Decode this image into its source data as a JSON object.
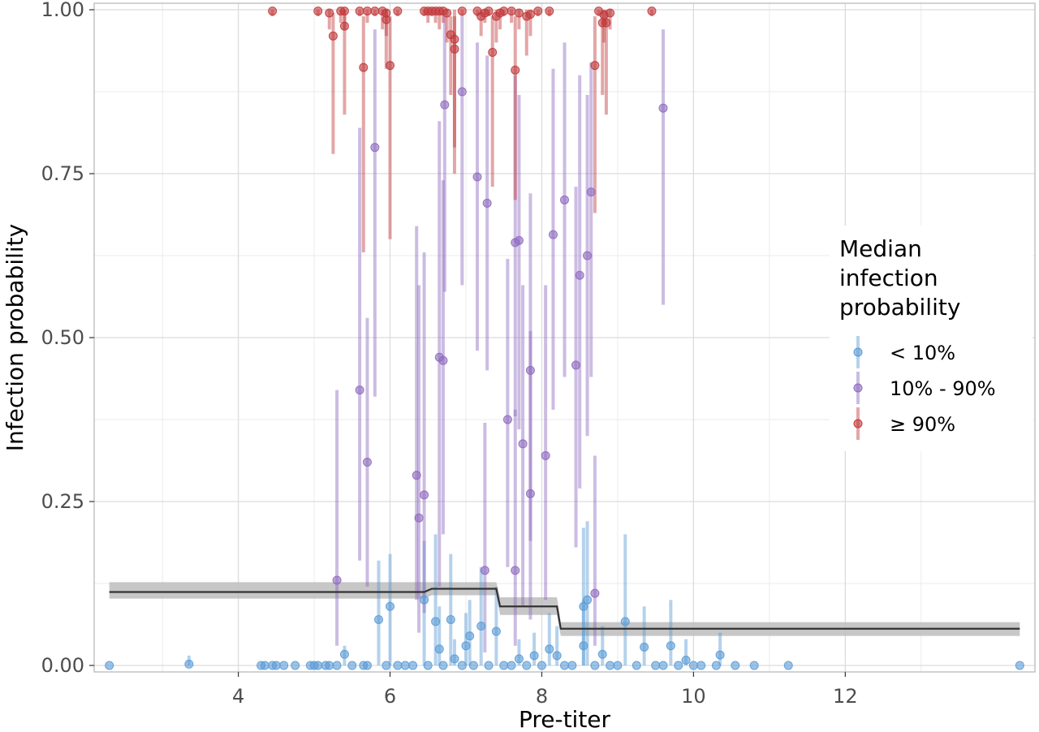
{
  "chart_data": {
    "type": "scatter",
    "xlabel": "Pre-titer",
    "ylabel": "Infection probability",
    "xlim": [
      2.1,
      14.5
    ],
    "ylim": [
      0,
      1
    ],
    "x_ticks": [
      4,
      6,
      8,
      10,
      12
    ],
    "x_tick_labels": [
      "4",
      "6",
      "8",
      "10",
      "12"
    ],
    "y_ticks": [
      0,
      0.25,
      0.5,
      0.75,
      1
    ],
    "y_tick_labels": [
      "0.00",
      "0.25",
      "0.50",
      "0.75",
      "1.00"
    ],
    "grid": true,
    "legend": {
      "title": [
        "Median",
        "infection",
        "probability"
      ],
      "placement": "right",
      "entries": [
        {
          "label": "< 10%",
          "color": "#5B9BD5"
        },
        {
          "label": "10% - 90%",
          "color": "#8E6BBE"
        },
        {
          "label": "≥ 90%",
          "color": "#C0393B"
        }
      ]
    },
    "colors": {
      "low": "#5B9BD5",
      "mid": "#8E6BBE",
      "high": "#C0393B",
      "step": "#333333",
      "band": "#bdbdbd"
    },
    "series": [
      {
        "name": "< 10%",
        "points": [
          [
            2.3,
            0,
            0,
            0
          ],
          [
            3.35,
            0.002,
            0,
            0.015
          ],
          [
            4.3,
            0,
            0,
            0
          ],
          [
            4.35,
            0,
            0,
            0
          ],
          [
            4.45,
            0,
            0,
            0
          ],
          [
            4.5,
            0,
            0,
            0
          ],
          [
            4.6,
            0,
            0,
            0
          ],
          [
            4.75,
            0,
            0,
            0
          ],
          [
            4.95,
            0,
            0,
            0
          ],
          [
            5.0,
            0,
            0,
            0
          ],
          [
            5.05,
            0,
            0,
            0
          ],
          [
            5.15,
            0,
            0,
            0
          ],
          [
            5.2,
            0,
            0,
            0
          ],
          [
            5.3,
            0,
            0,
            0
          ],
          [
            5.4,
            0.017,
            0,
            0.03
          ],
          [
            5.5,
            0,
            0,
            0
          ],
          [
            5.65,
            0,
            0,
            0
          ],
          [
            5.7,
            0,
            0,
            0
          ],
          [
            5.85,
            0.07,
            0,
            0.16
          ],
          [
            5.95,
            0,
            0,
            0
          ],
          [
            6.0,
            0.09,
            0,
            0.17
          ],
          [
            6.1,
            0,
            0,
            0
          ],
          [
            6.2,
            0,
            0,
            0
          ],
          [
            6.3,
            0,
            0,
            0
          ],
          [
            6.45,
            0.1,
            0,
            0.19
          ],
          [
            6.5,
            0,
            0,
            0
          ],
          [
            6.6,
            0.067,
            0,
            0.2
          ],
          [
            6.65,
            0.025,
            0,
            0.09
          ],
          [
            6.7,
            0,
            0,
            0
          ],
          [
            6.8,
            0.07,
            0,
            0.17
          ],
          [
            6.85,
            0.01,
            0,
            0.04
          ],
          [
            6.95,
            0,
            0,
            0
          ],
          [
            7.0,
            0.03,
            0,
            0.08
          ],
          [
            7.05,
            0.045,
            0,
            0.1
          ],
          [
            7.1,
            0,
            0,
            0
          ],
          [
            7.2,
            0.06,
            0,
            0.15
          ],
          [
            7.3,
            0,
            0,
            0
          ],
          [
            7.4,
            0.052,
            0,
            0.12
          ],
          [
            7.5,
            0,
            0,
            0
          ],
          [
            7.6,
            0,
            0,
            0
          ],
          [
            7.7,
            0.01,
            0,
            0.04
          ],
          [
            7.8,
            0,
            0,
            0
          ],
          [
            7.9,
            0.015,
            0,
            0.05
          ],
          [
            8.0,
            0,
            0,
            0
          ],
          [
            8.1,
            0.025,
            0,
            0.08
          ],
          [
            8.2,
            0.015,
            0,
            0.06
          ],
          [
            8.3,
            0,
            0,
            0
          ],
          [
            8.4,
            0,
            0,
            0
          ],
          [
            8.55,
            0.09,
            0,
            0.21
          ],
          [
            8.6,
            0.1,
            0,
            0.22
          ],
          [
            8.55,
            0.03,
            0,
            0.1
          ],
          [
            8.7,
            0,
            0,
            0
          ],
          [
            8.8,
            0.017,
            0,
            0.06
          ],
          [
            8.9,
            0,
            0,
            0
          ],
          [
            9.0,
            0,
            0,
            0
          ],
          [
            9.1,
            0.067,
            0,
            0.2
          ],
          [
            9.25,
            0,
            0,
            0
          ],
          [
            9.35,
            0.028,
            0,
            0.09
          ],
          [
            9.5,
            0,
            0,
            0
          ],
          [
            9.6,
            0,
            0,
            0
          ],
          [
            9.7,
            0.03,
            0,
            0.1
          ],
          [
            9.8,
            0,
            0,
            0
          ],
          [
            9.9,
            0.008,
            0,
            0.04
          ],
          [
            10.0,
            0,
            0,
            0
          ],
          [
            10.1,
            0,
            0,
            0
          ],
          [
            10.35,
            0.016,
            0,
            0.05
          ],
          [
            10.3,
            0,
            0,
            0
          ],
          [
            10.55,
            0,
            0,
            0
          ],
          [
            10.8,
            0,
            0,
            0
          ],
          [
            11.25,
            0,
            0,
            0
          ],
          [
            14.3,
            0,
            0,
            0
          ]
        ]
      },
      {
        "name": "10% - 90%",
        "points": [
          [
            5.3,
            0.13,
            0.03,
            0.42
          ],
          [
            5.6,
            0.42,
            0.16,
            0.82
          ],
          [
            5.7,
            0.31,
            0.12,
            0.53
          ],
          [
            5.8,
            0.79,
            0.41,
            0.97
          ],
          [
            6.35,
            0.29,
            0.1,
            0.67
          ],
          [
            6.38,
            0.225,
            0.05,
            0.58
          ],
          [
            6.45,
            0.26,
            0.08,
            0.63
          ],
          [
            6.65,
            0.47,
            0.12,
            0.83
          ],
          [
            6.7,
            0.465,
            0.2,
            0.74
          ],
          [
            6.72,
            0.855,
            0.57,
            0.99
          ],
          [
            6.95,
            0.875,
            0.58,
            0.99
          ],
          [
            7.15,
            0.745,
            0.48,
            0.95
          ],
          [
            7.25,
            0.145,
            0.02,
            0.37
          ],
          [
            7.28,
            0.705,
            0.45,
            0.93
          ],
          [
            7.55,
            0.375,
            0.15,
            0.62
          ],
          [
            7.65,
            0.145,
            0.03,
            0.39
          ],
          [
            7.65,
            0.645,
            0.38,
            0.9
          ],
          [
            7.7,
            0.648,
            0.36,
            0.87
          ],
          [
            7.75,
            0.338,
            0.09,
            0.58
          ],
          [
            7.85,
            0.45,
            0.19,
            0.72
          ],
          [
            7.85,
            0.262,
            0.07,
            0.51
          ],
          [
            8.05,
            0.32,
            0.1,
            0.58
          ],
          [
            8.15,
            0.657,
            0.39,
            0.91
          ],
          [
            8.3,
            0.71,
            0.44,
            0.95
          ],
          [
            8.45,
            0.458,
            0.18,
            0.73
          ],
          [
            8.5,
            0.595,
            0.27,
            0.9
          ],
          [
            8.6,
            0.625,
            0.35,
            0.87
          ],
          [
            8.65,
            0.722,
            0.44,
            0.92
          ],
          [
            8.7,
            0.11,
            0.03,
            0.32
          ],
          [
            9.6,
            0.85,
            0.55,
            0.97
          ]
        ]
      },
      {
        "name": "≥ 90%",
        "points": [
          [
            4.45,
            0.998,
            0.99,
            1
          ],
          [
            5.05,
            0.998,
            0.99,
            1
          ],
          [
            5.2,
            0.995,
            0.97,
            1
          ],
          [
            5.25,
            0.96,
            0.78,
            0.995
          ],
          [
            5.35,
            0.998,
            0.98,
            1
          ],
          [
            5.4,
            0.998,
            0.97,
            1
          ],
          [
            5.4,
            0.975,
            0.84,
            1
          ],
          [
            5.6,
            0.998,
            0.99,
            1
          ],
          [
            5.65,
            0.912,
            0.63,
            0.99
          ],
          [
            5.7,
            0.998,
            0.98,
            1
          ],
          [
            5.8,
            0.998,
            0.99,
            1
          ],
          [
            5.9,
            0.998,
            0.97,
            1
          ],
          [
            5.95,
            0.995,
            0.96,
            1
          ],
          [
            5.95,
            0.985,
            0.91,
            1
          ],
          [
            6.0,
            0.915,
            0.65,
            0.99
          ],
          [
            6.1,
            0.998,
            0.99,
            1
          ],
          [
            6.45,
            0.998,
            0.99,
            1
          ],
          [
            6.5,
            0.998,
            0.98,
            1
          ],
          [
            6.55,
            0.998,
            0.99,
            1
          ],
          [
            6.6,
            0.998,
            0.98,
            1
          ],
          [
            6.65,
            0.998,
            0.97,
            1
          ],
          [
            6.7,
            0.998,
            0.98,
            1
          ],
          [
            6.75,
            0.995,
            0.95,
            1
          ],
          [
            6.8,
            0.962,
            0.87,
            0.99
          ],
          [
            6.85,
            0.94,
            0.75,
            0.99
          ],
          [
            6.85,
            0.955,
            0.79,
            1
          ],
          [
            6.95,
            0.998,
            0.99,
            1
          ],
          [
            7.15,
            0.998,
            0.99,
            1
          ],
          [
            7.2,
            0.99,
            0.96,
            1
          ],
          [
            7.25,
            0.995,
            0.98,
            1
          ],
          [
            7.3,
            0.998,
            0.99,
            1
          ],
          [
            7.35,
            0.935,
            0.73,
            0.99
          ],
          [
            7.4,
            0.99,
            0.95,
            1
          ],
          [
            7.45,
            0.995,
            0.97,
            1
          ],
          [
            7.5,
            0.998,
            0.99,
            1
          ],
          [
            7.6,
            0.998,
            0.98,
            1
          ],
          [
            7.7,
            0.995,
            0.97,
            1
          ],
          [
            7.65,
            0.908,
            0.71,
            0.99
          ],
          [
            7.8,
            0.99,
            0.93,
            1
          ],
          [
            7.85,
            0.993,
            0.96,
            1
          ],
          [
            7.95,
            0.998,
            0.99,
            1
          ],
          [
            8.1,
            0.998,
            0.99,
            1
          ],
          [
            8.7,
            0.915,
            0.69,
            0.99
          ],
          [
            8.75,
            0.998,
            0.99,
            1
          ],
          [
            8.8,
            0.98,
            0.87,
            1
          ],
          [
            8.82,
            0.992,
            0.95,
            1
          ],
          [
            8.85,
            0.98,
            0.84,
            1
          ],
          [
            8.9,
            0.995,
            0.97,
            1
          ],
          [
            9.45,
            0.998,
            0.99,
            1
          ]
        ]
      }
    ],
    "step_line": {
      "name": "",
      "x": [
        2.3,
        6.45,
        6.55,
        7.4,
        7.45,
        8.2,
        8.25,
        14.3
      ],
      "y": [
        0.112,
        0.112,
        0.117,
        0.117,
        0.09,
        0.09,
        0.056,
        0.056
      ],
      "lower": [
        0.102,
        0.102,
        0.107,
        0.107,
        0.077,
        0.077,
        0.045,
        0.045
      ],
      "upper": [
        0.127,
        0.127,
        0.127,
        0.127,
        0.104,
        0.104,
        0.066,
        0.066
      ]
    }
  }
}
